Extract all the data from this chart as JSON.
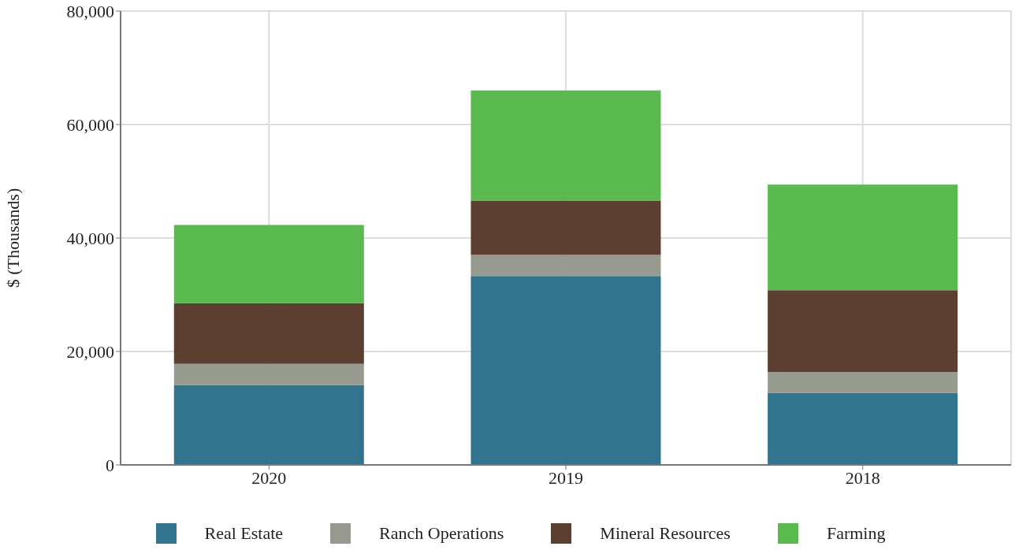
{
  "chart_data": {
    "type": "bar",
    "stacked": true,
    "ylabel": "$ (Thousands)",
    "categories": [
      "2020",
      "2019",
      "2018"
    ],
    "series": [
      {
        "name": "Real Estate",
        "color": "#32748e",
        "values": [
          14100,
          33300,
          12700
        ]
      },
      {
        "name": "Ranch Operations",
        "color": "#979a8e",
        "values": [
          3700,
          3700,
          3700
        ]
      },
      {
        "name": "Mineral Resources",
        "color": "#5c3f30",
        "values": [
          10700,
          9600,
          14400
        ]
      },
      {
        "name": "Farming",
        "color": "#5bba4f",
        "values": [
          13800,
          19400,
          18600
        ]
      }
    ],
    "ylim": [
      0,
      80000
    ],
    "yticks": [
      0,
      {
        "value": 20000,
        "label": "20,000"
      },
      {
        "value": 40000,
        "label": "40,000"
      },
      {
        "value": 60000,
        "label": "60,000"
      },
      {
        "value": 80000,
        "label": "80,000"
      }
    ],
    "grid": true,
    "legend": "bottom"
  }
}
